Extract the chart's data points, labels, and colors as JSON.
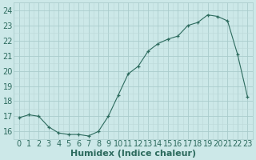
{
  "x": [
    0,
    1,
    2,
    3,
    4,
    5,
    6,
    7,
    8,
    9,
    10,
    11,
    12,
    13,
    14,
    15,
    16,
    17,
    18,
    19,
    20,
    21,
    22,
    23
  ],
  "y": [
    16.9,
    17.1,
    17.0,
    16.3,
    15.9,
    15.8,
    15.8,
    15.7,
    16.0,
    17.0,
    18.4,
    19.8,
    20.3,
    21.3,
    21.8,
    22.1,
    22.3,
    23.0,
    23.2,
    23.7,
    23.6,
    23.3,
    21.1,
    18.3
  ],
  "xlabel": "Humidex (Indice chaleur)",
  "ylim": [
    15.5,
    24.5
  ],
  "xlim": [
    -0.5,
    23.5
  ],
  "yticks": [
    16,
    17,
    18,
    19,
    20,
    21,
    22,
    23,
    24
  ],
  "xticks": [
    0,
    1,
    2,
    3,
    4,
    5,
    6,
    7,
    8,
    9,
    10,
    11,
    12,
    13,
    14,
    15,
    16,
    17,
    18,
    19,
    20,
    21,
    22,
    23
  ],
  "line_color": "#2d6b5e",
  "marker_color": "#2d6b5e",
  "bg_color": "#cce8e8",
  "grid_major_color": "#aacccc",
  "grid_minor_color": "#bcd8d8",
  "tick_color": "#2d6b5e",
  "label_color": "#2d6b5e",
  "font_size": 7.0,
  "xlabel_fontsize": 8.0
}
